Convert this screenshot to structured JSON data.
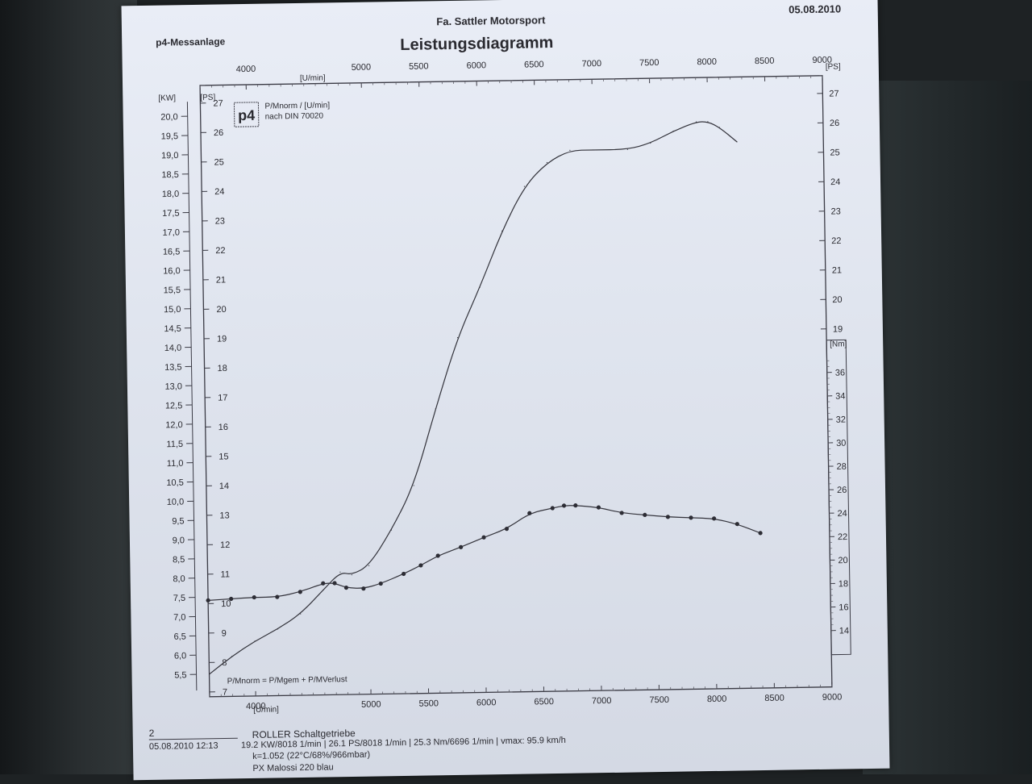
{
  "header": {
    "left": "p4-Messanlage",
    "company": "Fa. Sattler Motorsport",
    "title": "Leistungsdiagramm",
    "date": "05.08.2010"
  },
  "legend": {
    "logo": "p4",
    "line1": "P/Mnorm / [U/min]",
    "line2": "nach DIN 70020",
    "formula": "P/Mnorm = P/Mgem + P/MVerlust"
  },
  "footer": {
    "number": "2",
    "vehicle": "ROLLER Schaltgetriebe",
    "timestamp": "05.08.2010  12:13",
    "summary": "19.2 KW/8018 1/min  |  26.1 PS/8018 1/min  |  25.3 Nm/6696 1/min | vmax: 95.9 km/h",
    "conditions": "k=1.052 (22°C/68%/966mbar)",
    "model": "PX Malossi 220 blau"
  },
  "chart_data": {
    "type": "line",
    "title": "Leistungsdiagramm",
    "xlabel": "[U/min]",
    "xlim": [
      3600,
      9000
    ],
    "x_ticks_top": [
      4000,
      5000,
      5500,
      6000,
      6500,
      7000,
      7500,
      8000,
      8500,
      9000
    ],
    "x_ticks_bottom": [
      4000,
      5000,
      5500,
      6000,
      6500,
      7000,
      7500,
      8000,
      8500,
      9000
    ],
    "x_unit_bottom": "[U/min]",
    "axes": {
      "kw": {
        "label": "[KW]",
        "range": [
          5.0,
          20.0
        ],
        "ticks": [
          "20,0",
          "19,5",
          "19,0",
          "18,5",
          "18,0",
          "17,5",
          "17,0",
          "16,5",
          "16,0",
          "15,5",
          "15,0",
          "14,5",
          "14,0",
          "13,5",
          "13,0",
          "12,5",
          "12,0",
          "11,5",
          "11,0",
          "10,5",
          "10,0",
          "9,5",
          "9,0",
          "8,5",
          "8,0",
          "7,5",
          "7,0",
          "6,5",
          "6,0",
          "5,5"
        ]
      },
      "ps_left": {
        "label": "[PS]",
        "range": [
          7,
          27
        ],
        "ticks": [
          27,
          26,
          25,
          24,
          23,
          22,
          21,
          20,
          19,
          18,
          17,
          16,
          15,
          14,
          13,
          12,
          11,
          10,
          9,
          8,
          7
        ]
      },
      "ps_right": {
        "label": "[PS]",
        "range": [
          7,
          27
        ],
        "ticks": [
          27,
          26,
          25,
          24,
          23,
          22,
          21,
          20,
          19
        ]
      },
      "nm": {
        "label": "[Nm]",
        "range": [
          12,
          38
        ],
        "ticks": [
          36,
          34,
          32,
          30,
          28,
          26,
          24,
          22,
          20,
          18,
          16,
          14
        ]
      }
    },
    "series": [
      {
        "name": "",
        "axis": "ps_left",
        "style": "solid",
        "points": [
          [
            3600,
            7.6
          ],
          [
            3800,
            8.2
          ],
          [
            4000,
            8.7
          ],
          [
            4200,
            9.1
          ],
          [
            4400,
            9.6
          ],
          [
            4600,
            10.4
          ],
          [
            4750,
            11.0
          ],
          [
            4850,
            10.9
          ],
          [
            5000,
            11.2
          ],
          [
            5200,
            12.4
          ],
          [
            5400,
            13.9
          ],
          [
            5600,
            16.5
          ],
          [
            5800,
            18.9
          ],
          [
            6000,
            20.6
          ],
          [
            6200,
            22.5
          ],
          [
            6400,
            24.0
          ],
          [
            6600,
            24.8
          ],
          [
            6800,
            25.2
          ],
          [
            7000,
            25.2
          ],
          [
            7300,
            25.2
          ],
          [
            7500,
            25.4
          ],
          [
            7700,
            25.8
          ],
          [
            7900,
            26.1
          ],
          [
            8000,
            26.1
          ],
          [
            8100,
            25.9
          ],
          [
            8250,
            25.4
          ]
        ]
      },
      {
        "name": "",
        "axis": "nm",
        "style": "dotted",
        "points": [
          [
            3600,
            17.4
          ],
          [
            3800,
            17.5
          ],
          [
            4000,
            17.6
          ],
          [
            4200,
            17.6
          ],
          [
            4400,
            18.0
          ],
          [
            4600,
            18.7
          ],
          [
            4700,
            18.7
          ],
          [
            4800,
            18.3
          ],
          [
            4950,
            18.2
          ],
          [
            5100,
            18.6
          ],
          [
            5300,
            19.4
          ],
          [
            5450,
            20.1
          ],
          [
            5600,
            20.9
          ],
          [
            5800,
            21.6
          ],
          [
            6000,
            22.4
          ],
          [
            6200,
            23.1
          ],
          [
            6400,
            24.4
          ],
          [
            6600,
            24.8
          ],
          [
            6700,
            25.0
          ],
          [
            6800,
            25.0
          ],
          [
            7000,
            24.8
          ],
          [
            7200,
            24.3
          ],
          [
            7400,
            24.1
          ],
          [
            7600,
            23.9
          ],
          [
            7800,
            23.8
          ],
          [
            8000,
            23.7
          ],
          [
            8200,
            23.2
          ],
          [
            8400,
            22.4
          ]
        ]
      }
    ],
    "grid": false
  }
}
